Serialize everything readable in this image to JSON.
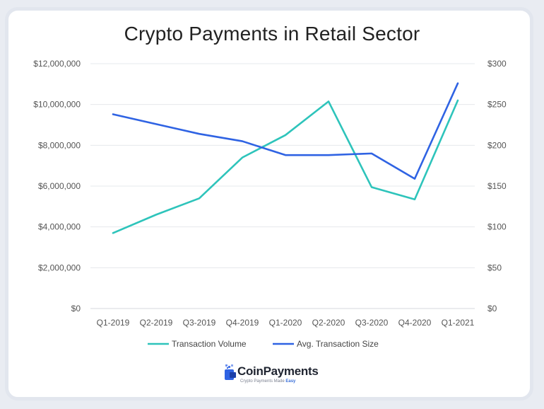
{
  "chart_data": {
    "type": "line",
    "title": "Crypto Payments in Retail Sector",
    "categories": [
      "Q1-2019",
      "Q2-2019",
      "Q3-2019",
      "Q4-2019",
      "Q1-2020",
      "Q2-2020",
      "Q3-2020",
      "Q4-2020",
      "Q1-2021"
    ],
    "y_left": {
      "ticks": [
        "$0",
        "$2,000,000",
        "$4,000,000",
        "$6,000,000",
        "$8,000,000",
        "$10,000,000",
        "$12,000,000"
      ],
      "ylim": [
        0,
        12000000
      ]
    },
    "y_right": {
      "ticks": [
        "$0",
        "$50",
        "$100",
        "$150",
        "$200",
        "$250",
        "$300"
      ],
      "ylim": [
        0,
        300
      ]
    },
    "grid": true,
    "legend_position": "bottom",
    "series": [
      {
        "name": "Transaction Volume",
        "axis": "left",
        "color": "#2ec4bb",
        "values": [
          3700000,
          4600000,
          5400000,
          7400000,
          8500000,
          10150000,
          5950000,
          5350000,
          10200000
        ]
      },
      {
        "name": "Avg. Transaction Size",
        "axis": "right",
        "color": "#2f63e3",
        "values": [
          238,
          226,
          214,
          205,
          188,
          188,
          190,
          159,
          276
        ]
      }
    ]
  },
  "brand": {
    "name": "CoinPayments",
    "tagline_prefix": "Crypto Payments Made",
    "tagline_emphasis": "Easy"
  }
}
